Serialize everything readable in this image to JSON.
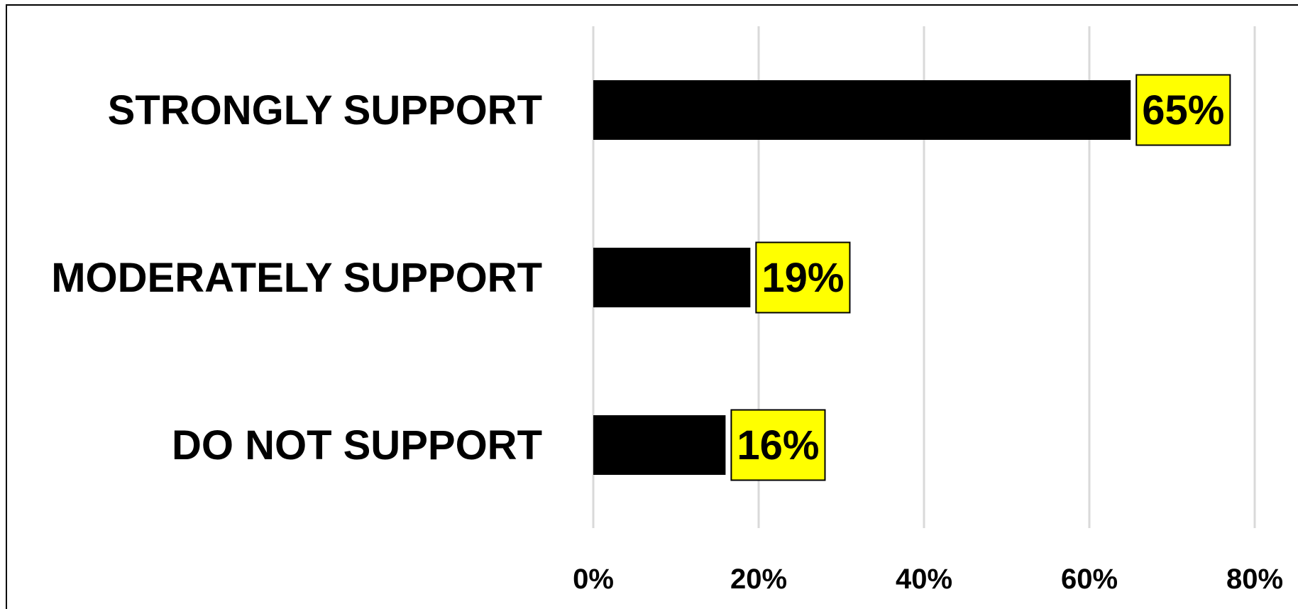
{
  "chart_data": {
    "type": "bar",
    "orientation": "horizontal",
    "categories": [
      "STRONGLY SUPPORT",
      "MODERATELY SUPPORT",
      "DO NOT SUPPORT"
    ],
    "values": [
      65,
      19,
      16
    ],
    "value_labels": [
      "65%",
      "19%",
      "16%"
    ],
    "title": "",
    "xlabel": "",
    "ylabel": "",
    "xlim": [
      0,
      80
    ],
    "x_ticks": [
      0,
      20,
      40,
      60,
      80
    ],
    "x_tick_labels": [
      "0%",
      "20%",
      "40%",
      "60%",
      "80%"
    ],
    "grid": "vertical",
    "legend": "none"
  },
  "colors": {
    "bar": "#000000",
    "label_box": "#ffff00",
    "label_box_border": "#000000",
    "grid": "#d9d9d9",
    "frame": "#000000",
    "background": "#ffffff"
  }
}
